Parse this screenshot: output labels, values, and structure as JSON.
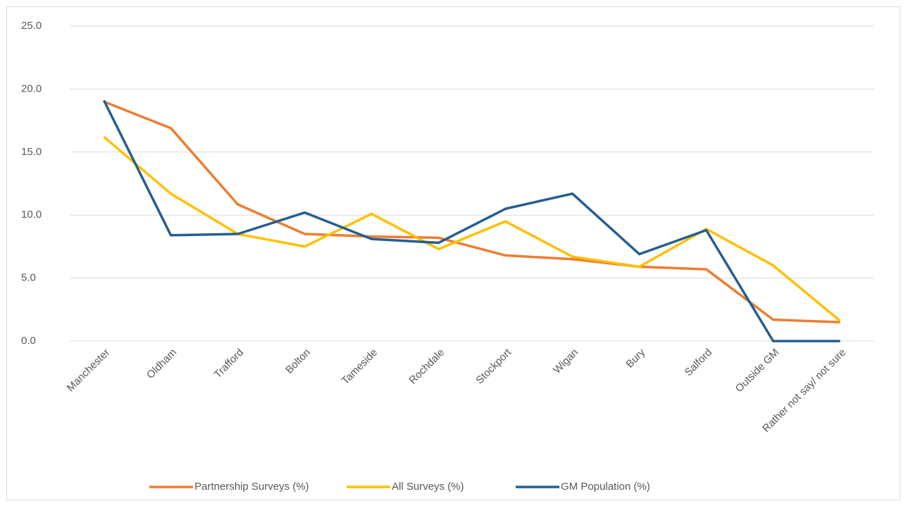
{
  "chart_data": {
    "type": "line",
    "categories": [
      "Manchester",
      "Oldham",
      "Trafford",
      "Bolton",
      "Tameside",
      "Rochdale",
      "Stockport",
      "Wigan",
      "Bury",
      "Salford",
      "Outside GM",
      "Rather not say/ not sure"
    ],
    "series": [
      {
        "name": "Partnership Surveys (%)",
        "color": "#ed7d31",
        "values": [
          19.0,
          16.9,
          10.85,
          8.5,
          8.3,
          8.2,
          6.8,
          6.5,
          5.9,
          5.7,
          1.7,
          1.5
        ]
      },
      {
        "name": "All Surveys  (%)",
        "color": "#ffc000",
        "values": [
          16.2,
          11.7,
          8.5,
          7.5,
          10.1,
          7.3,
          9.5,
          6.7,
          5.9,
          8.9,
          6.0,
          1.6
        ]
      },
      {
        "name": "GM Population  (%)",
        "color": "#255e91",
        "values": [
          19.1,
          8.4,
          8.5,
          10.2,
          8.1,
          7.8,
          10.5,
          11.7,
          6.9,
          8.8,
          0,
          0
        ]
      }
    ],
    "ylim": [
      0,
      25
    ],
    "yticks": [
      {
        "value": 0,
        "label": "0.0"
      },
      {
        "value": 5,
        "label": "5.0"
      },
      {
        "value": 10,
        "label": "10.0"
      },
      {
        "value": 15,
        "label": "15.0"
      },
      {
        "value": 20,
        "label": "20.0"
      },
      {
        "value": 25,
        "label": "25.0"
      }
    ],
    "grid": true,
    "legend": "bottom"
  }
}
